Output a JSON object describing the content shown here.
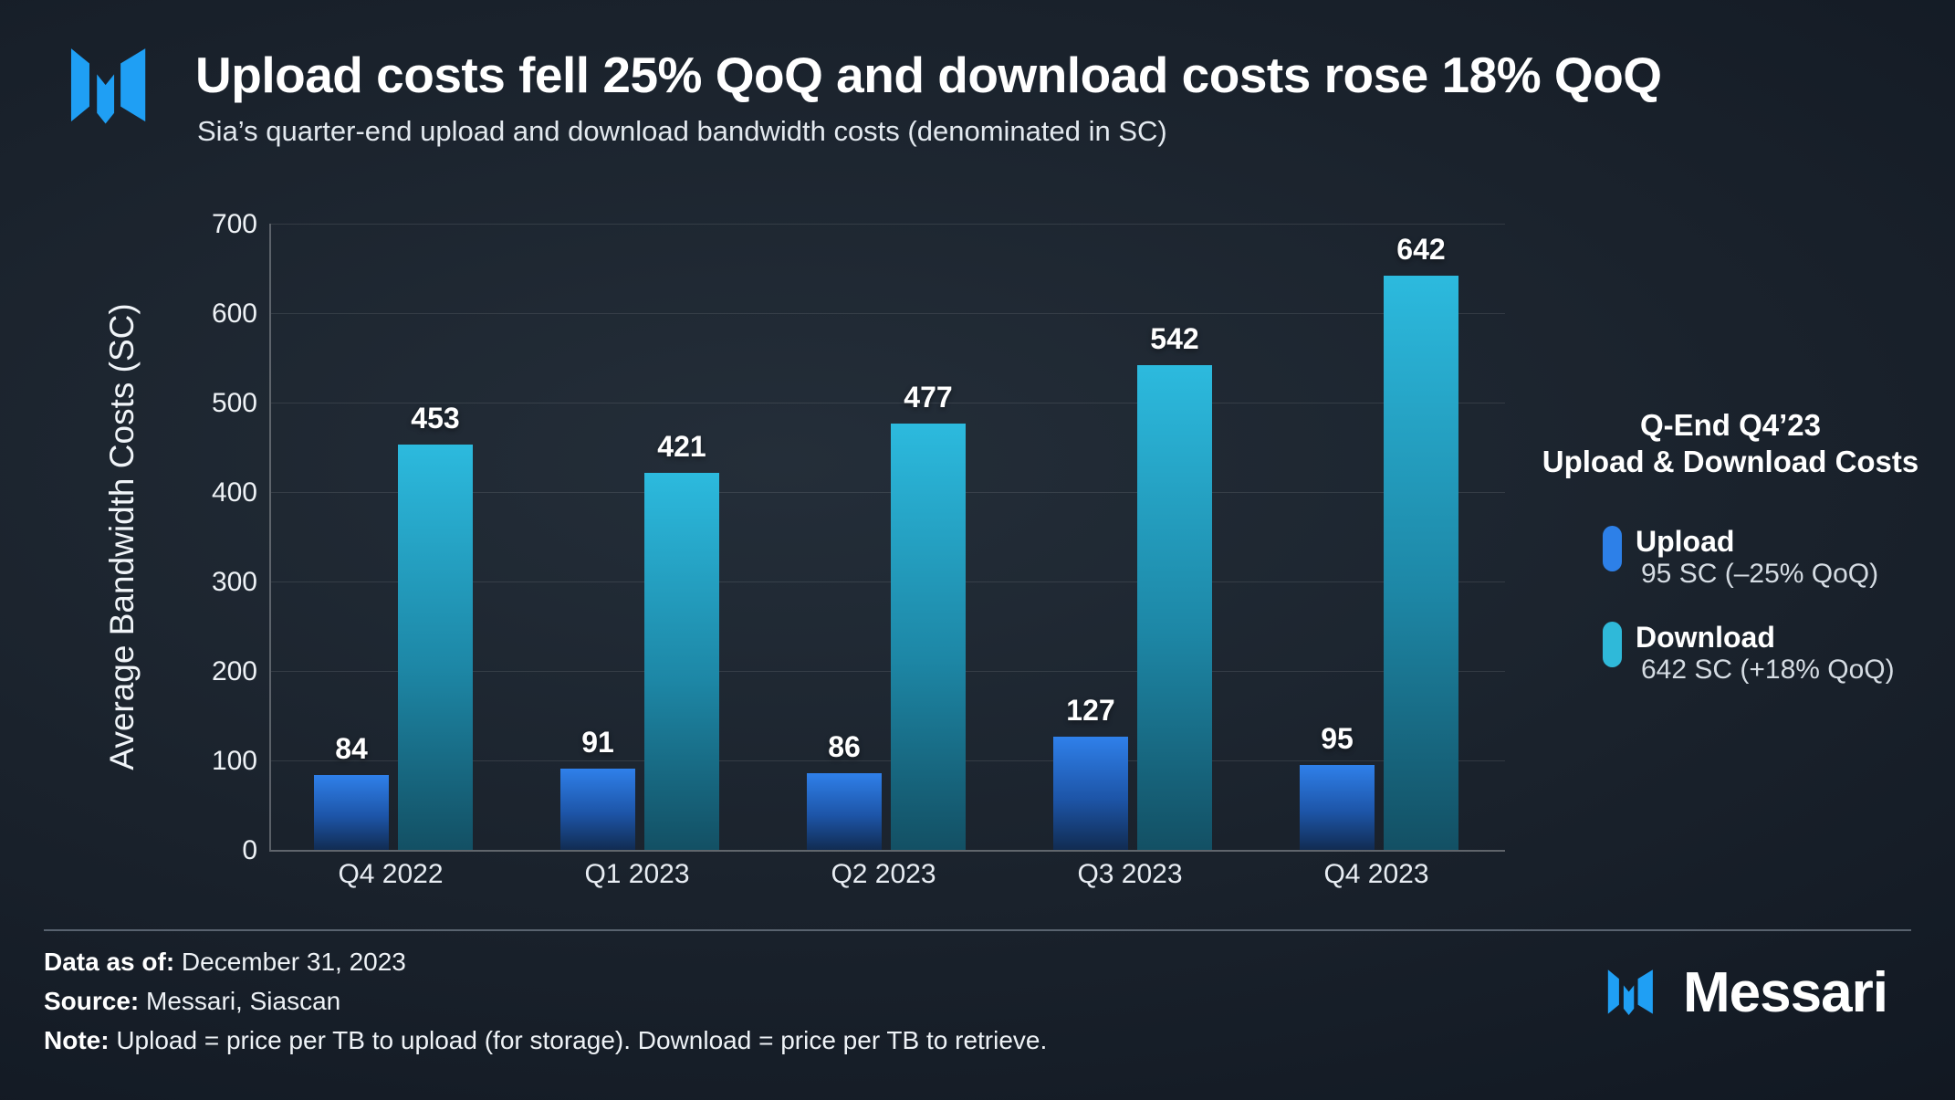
{
  "header": {
    "title": "Upload costs fell 25% QoQ and download costs rose 18% QoQ",
    "subtitle": "Sia’s quarter-end upload and download bandwidth costs (denominated in SC)"
  },
  "chart_data": {
    "type": "bar",
    "title": "Upload costs fell 25% QoQ and download costs rose 18% QoQ",
    "categories": [
      "Q4 2022",
      "Q1 2023",
      "Q2 2023",
      "Q3 2023",
      "Q4 2023"
    ],
    "series": [
      {
        "name": "Upload",
        "values": [
          84,
          91,
          86,
          127,
          95
        ],
        "color_top": "#2f80ea",
        "color_mid": "#1d55a8",
        "color_bottom": "#112c52"
      },
      {
        "name": "Download",
        "values": [
          453,
          421,
          477,
          542,
          642
        ],
        "color_top": "#2cbade",
        "color_mid": "#1d87a6",
        "color_bottom": "#135064"
      }
    ],
    "xlabel": "",
    "ylabel": "Average Bandwidth Costs (SC)",
    "ylim": [
      0,
      700
    ],
    "yticks": [
      0,
      100,
      200,
      300,
      400,
      500,
      600,
      700
    ],
    "grid": "horizontal",
    "legend_position": "right"
  },
  "legend": {
    "heading_line1": "Q-End Q4’23",
    "heading_line2": "Upload & Download Costs",
    "items": [
      {
        "label": "Upload",
        "detail": "95 SC (–25% QoQ)",
        "color": "#2d80e8"
      },
      {
        "label": "Download",
        "detail": "642 SC (+18% QoQ)",
        "color": "#2fb9d9"
      }
    ]
  },
  "footer": {
    "data_as_of_label": "Data as of:",
    "data_as_of_value": " December 31, 2023",
    "source_label": "Source:",
    "source_value": " Messari, Siascan",
    "note_label": "Note:",
    "note_value": " Upload = price per TB to upload (for storage). Download = price per TB to retrieve.",
    "brand": "Messari"
  },
  "colors": {
    "accent_blue": "#1f9ff4",
    "upload": "#2d80e8",
    "download": "#2fb9d9",
    "background": "#151d27"
  }
}
